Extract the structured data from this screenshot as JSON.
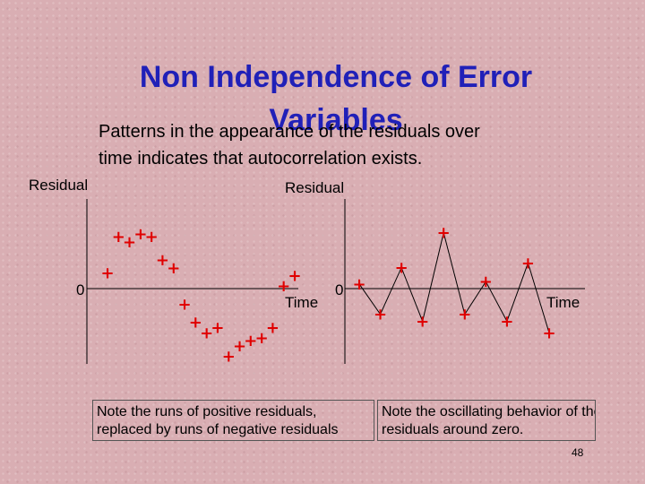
{
  "slide": {
    "title_line1": "Non Independence of Error",
    "title_line2": "Variables",
    "subtitle_line1": "Patterns in the appearance of the residuals over",
    "subtitle_line2": "time indicates that autocorrelation exists.",
    "page_number": "48"
  },
  "notes": {
    "left_line1": "Note the runs of positive residuals,",
    "left_line2": "replaced by runs of negative residuals",
    "right_line1": "Note the oscillating behavior of the",
    "right_line2": "residuals around zero."
  },
  "colors": {
    "title": "#2020b8",
    "marker": "#e00000",
    "line": "#000000"
  },
  "chart_data": [
    {
      "type": "line",
      "ylabel": "Residual",
      "xlabel": "Time",
      "zero_label": "0",
      "marker": "+",
      "series": [
        {
          "values": [
            0.3,
            1.0,
            0.9,
            1.05,
            1.0,
            0.55,
            0.4,
            -0.3,
            -0.65,
            -0.85,
            -0.75,
            -1.3,
            -1.1,
            -1.0,
            -0.95,
            -0.75,
            0.05,
            0.25
          ]
        }
      ]
    },
    {
      "type": "line",
      "ylabel": "Residual",
      "xlabel": "Time",
      "zero_label": "0",
      "marker": "+",
      "series": [
        {
          "values": [
            0.1,
            -0.55,
            0.45,
            -0.7,
            1.2,
            -0.55,
            0.15,
            -0.7,
            0.55,
            -0.95
          ]
        }
      ]
    }
  ]
}
